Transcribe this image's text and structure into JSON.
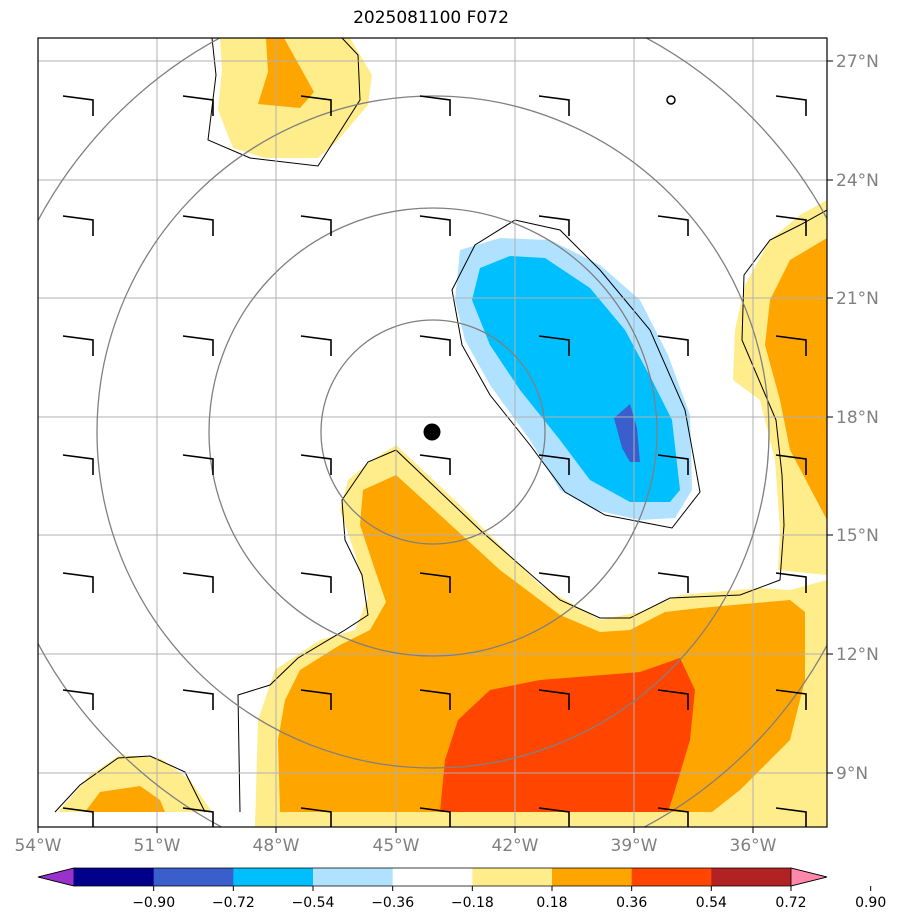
{
  "title": "2025081100 F072",
  "map": {
    "lat_ticks": [
      "27°N",
      "24°N",
      "21°N",
      "18°N",
      "15°N",
      "12°N",
      "9°N"
    ],
    "lon_ticks": [
      "54°W",
      "51°W",
      "48°W",
      "45°W",
      "42°W",
      "39°W",
      "36°W"
    ],
    "extent": {
      "lon_min": -54,
      "lon_max": -34,
      "lat_min": 7.9,
      "lat_max": 28.5
    },
    "storm_center": {
      "lon": -44.1,
      "lat": 17.6
    }
  },
  "colorbar": {
    "labels": [
      "−0.90",
      "−0.72",
      "−0.54",
      "−0.36",
      "−0.18",
      "0.18",
      "0.36",
      "0.54",
      "0.72",
      "0.90"
    ],
    "colors": [
      "#9932cc",
      "#00008b",
      "#3a5fcd",
      "#00bfff",
      "#b0e2ff",
      "#ffffff",
      "#ffec8b",
      "#ffa500",
      "#ff4500",
      "#b22222",
      "#ff88aa"
    ]
  }
}
